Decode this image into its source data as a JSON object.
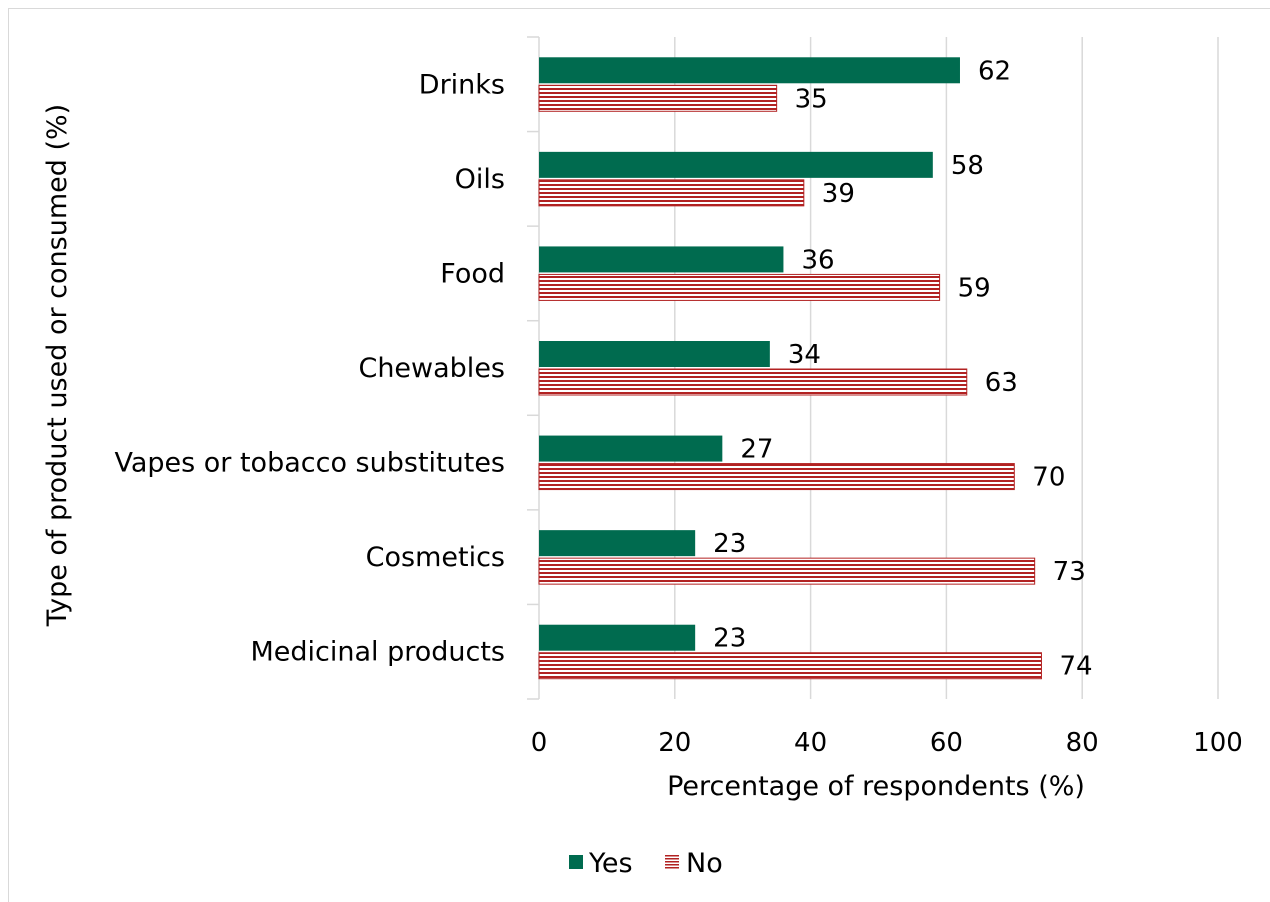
{
  "chart_data": {
    "type": "bar",
    "orientation": "horizontal",
    "categories": [
      "Drinks",
      "Oils",
      "Food",
      "Chewables",
      "Vapes or tobacco substitutes",
      "Cosmetics",
      "Medicinal products"
    ],
    "series": [
      {
        "name": "Yes",
        "values": [
          62,
          58,
          36,
          34,
          27,
          23,
          23
        ],
        "color": "#006b4f",
        "pattern": "solid"
      },
      {
        "name": "No",
        "values": [
          35,
          39,
          59,
          63,
          70,
          73,
          74
        ],
        "color": "#b22222",
        "pattern": "horizontal-stripes"
      }
    ],
    "xlabel": "Percentage of respondents (%)",
    "ylabel": "Type of product used or consumed (%)",
    "xlim": [
      0,
      100
    ],
    "xticks": [
      "0",
      "20",
      "40",
      "60",
      "80",
      "100"
    ],
    "grid": "vertical",
    "legend": "bottom",
    "data_labels": true
  }
}
